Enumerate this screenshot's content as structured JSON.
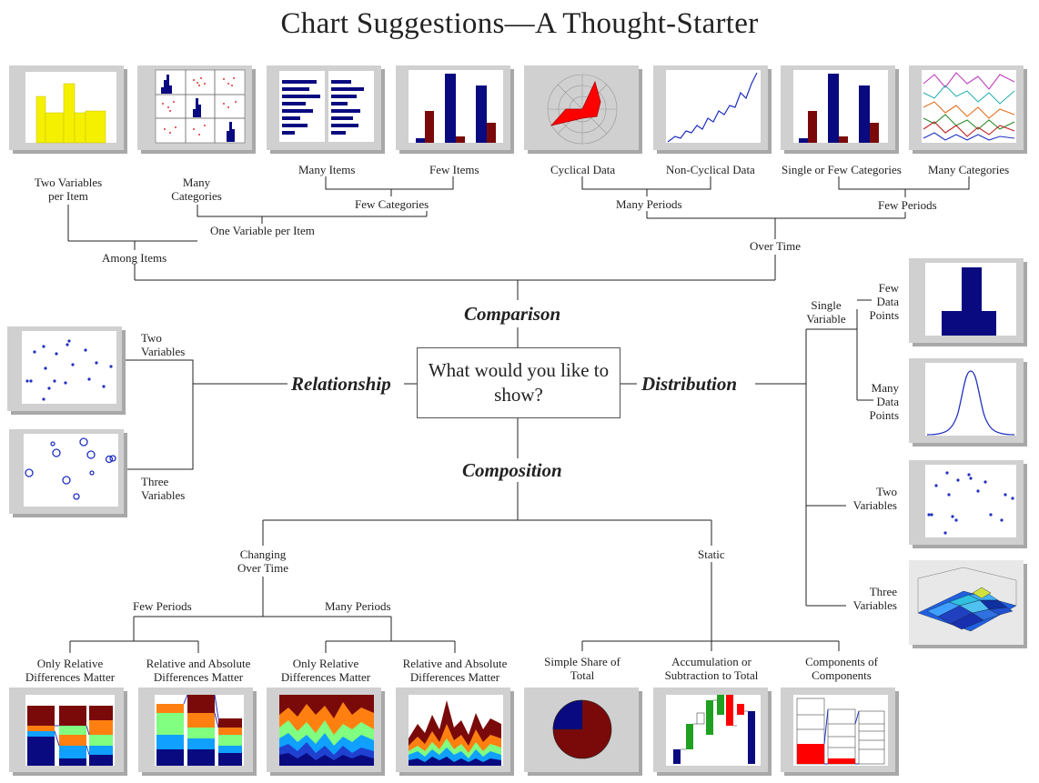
{
  "title": "Chart Suggestions—A Thought-Starter",
  "center_question": "What would you like to show?",
  "categories": {
    "comparison": "Comparison",
    "relationship": "Relationship",
    "distribution": "Distribution",
    "composition": "Composition"
  },
  "comparison": {
    "among_items": "Among Items",
    "over_time": "Over Time",
    "two_variables_per_item": "Two Variables per Item",
    "one_variable_per_item": "One Variable per Item",
    "many_categories": "Many Categories",
    "few_categories": "Few Categories",
    "many_items": "Many Items",
    "few_items": "Few Items",
    "many_periods": "Many Periods",
    "few_periods": "Few Periods",
    "cyclical_data": "Cyclical Data",
    "non_cyclical_data": "Non-Cyclical Data",
    "single_or_few_categories": "Single or Few Categories",
    "many_categories_time": "Many Categories"
  },
  "relationship": {
    "two_variables": "Two Variables",
    "three_variables": "Three Variables"
  },
  "distribution": {
    "single_variable": "Single Variable",
    "few_data_points": "Few Data Points",
    "many_data_points": "Many Data Points",
    "two_variables": "Two Variables",
    "three_variables": "Three Variables"
  },
  "composition": {
    "changing_over_time": "Changing Over Time",
    "static": "Static",
    "few_periods": "Few Periods",
    "many_periods": "Many Periods",
    "only_relative_1": "Only Relative Differences Matter",
    "relative_absolute_1": "Relative and Absolute Differences Matter",
    "only_relative_2": "Only Relative Differences Matter",
    "relative_absolute_2": "Relative and Absolute Differences Matter",
    "simple_share": "Simple Share of Total",
    "accumulation": "Accumulation or Subtraction to Total",
    "components": "Components of Components"
  },
  "colors": {
    "line": "#222222",
    "navy": "#0a0a80",
    "maroon": "#7a0a0a",
    "yellow": "#f5f000",
    "red": "#ff0000",
    "green": "#20a020",
    "blue": "#2030c0",
    "thumb_bg": "#d0d0d0",
    "thumb_shadow": "#a8a8a8"
  }
}
